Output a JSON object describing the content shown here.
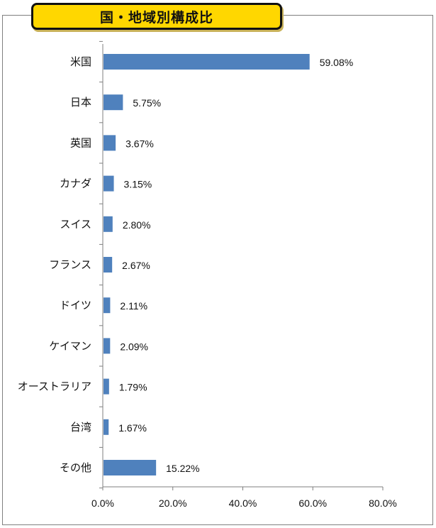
{
  "title": "国・地域別構成比",
  "colors": {
    "bar": "#4f81bd",
    "title_bg": "#ffd700",
    "axis": "#7f7f7f"
  },
  "chart_data": {
    "type": "bar",
    "orientation": "horizontal",
    "categories": [
      "米国",
      "日本",
      "英国",
      "カナダ",
      "スイス",
      "フランス",
      "ドイツ",
      "ケイマン",
      "オーストラリア",
      "台湾",
      "その他"
    ],
    "values": [
      59.08,
      5.75,
      3.67,
      3.15,
      2.8,
      2.67,
      2.11,
      2.09,
      1.79,
      1.67,
      15.22
    ],
    "data_labels": [
      "59.08%",
      "5.75%",
      "3.67%",
      "3.15%",
      "2.80%",
      "2.67%",
      "2.11%",
      "2.09%",
      "1.79%",
      "1.67%",
      "15.22%"
    ],
    "xlim": [
      0,
      80
    ],
    "xticks": [
      0,
      20,
      40,
      60,
      80
    ],
    "xtick_labels": [
      "0.0%",
      "20.0%",
      "40.0%",
      "60.0%",
      "80.0%"
    ],
    "grid": false,
    "legend": "none"
  }
}
